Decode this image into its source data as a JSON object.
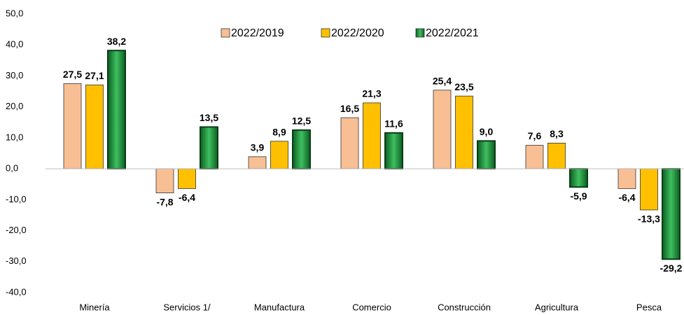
{
  "chart_data": {
    "type": "bar",
    "categories": [
      "Minería",
      "Servicios 1/",
      "Manufactura",
      "Comercio",
      "Construcción",
      "Agricultura",
      "Pesca"
    ],
    "series": [
      {
        "name": "2022/2019",
        "color": "#f9bf94",
        "values": [
          27.5,
          -7.8,
          3.9,
          16.5,
          25.4,
          7.6,
          -6.4
        ],
        "value_labels": [
          "27,5",
          "-7,8",
          "3,9",
          "16,5",
          "25,4",
          "7,6",
          "-6,4"
        ]
      },
      {
        "name": "2022/2020",
        "color": "#ffc000",
        "values": [
          27.1,
          -6.4,
          8.9,
          21.3,
          23.5,
          8.3,
          -13.3
        ],
        "value_labels": [
          "27,1",
          "-6,4",
          "8,9",
          "21,3",
          "23,5",
          "8,3",
          "-13,3"
        ]
      },
      {
        "name": "2022/2021",
        "color": "#1e8c3a",
        "values": [
          38.2,
          13.5,
          12.5,
          11.6,
          9.0,
          -5.9,
          -29.2
        ],
        "value_labels": [
          "38,2",
          "13,5",
          "12,5",
          "11,6",
          "9,0",
          "-5,9",
          "-29,2"
        ]
      }
    ],
    "ylim": [
      -40,
      50
    ],
    "yticks": [
      {
        "value": -40,
        "label": "-40,0"
      },
      {
        "value": -30,
        "label": "-30,0"
      },
      {
        "value": -20,
        "label": "-20,0"
      },
      {
        "value": -10,
        "label": "-10,0"
      },
      {
        "value": 0,
        "label": "0,0"
      },
      {
        "value": 10,
        "label": "10,0"
      },
      {
        "value": 20,
        "label": "20,0"
      },
      {
        "value": 30,
        "label": "30,0"
      },
      {
        "value": 40,
        "label": "40,0"
      },
      {
        "value": 50,
        "label": "50,0"
      }
    ],
    "grid": false,
    "legend": "top"
  }
}
